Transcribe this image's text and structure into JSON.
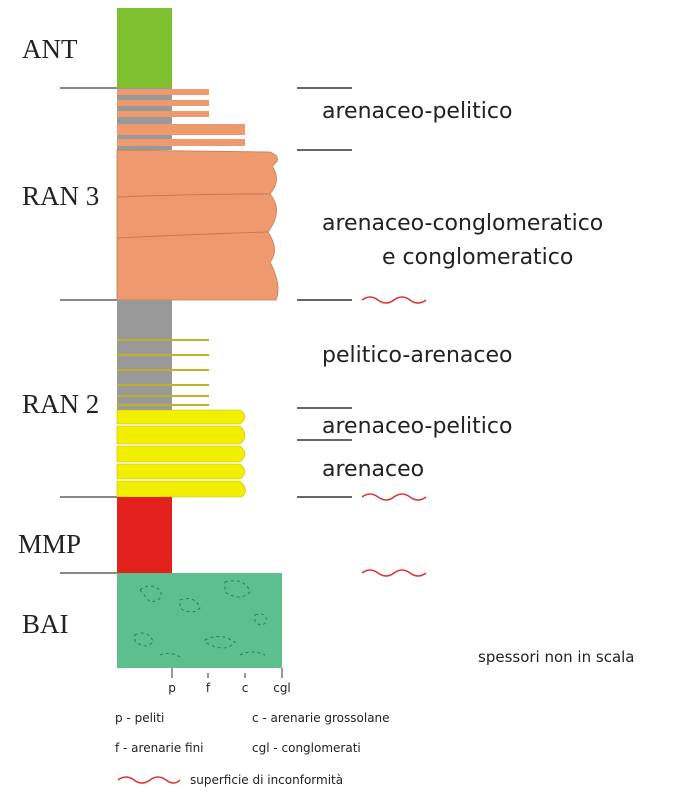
{
  "units": [
    "ANT",
    "RAN 3",
    "RAN 2",
    "MMP",
    "BAI"
  ],
  "descriptions": [
    "arenaceo-pelitico",
    "arenaceo-conglomeratico",
    "e conglomeratico",
    "pelitico-arenaceo",
    "arenaceo-pelitico",
    "arenaceo"
  ],
  "note": "spessori non in scala",
  "scale": [
    "p",
    "f",
    "c",
    "cgl"
  ],
  "legend": [
    "p - peliti",
    "c - arenarie grossolane",
    "f - arenarie fini",
    "cgl - conglomerati",
    "superficie di inconformità"
  ]
}
